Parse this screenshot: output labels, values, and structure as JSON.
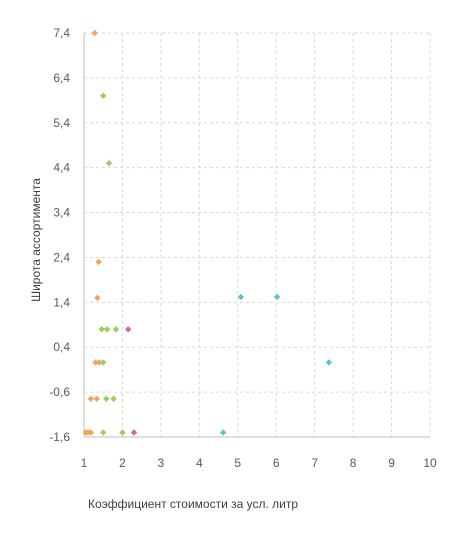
{
  "chart_data": {
    "type": "scatter",
    "title": "",
    "xlabel": "Коэффициент стоимости за усл. литр",
    "ylabel": "Широта ассортимента",
    "xlim": [
      1,
      10
    ],
    "ylim": [
      -1.6,
      7.4
    ],
    "x_ticks": [
      "1",
      "2",
      "3",
      "4",
      "5",
      "6",
      "7",
      "8",
      "9",
      "10"
    ],
    "y_ticks": [
      "7,4",
      "6,4",
      "5,4",
      "4,4",
      "3,4",
      "2,4",
      "1,4",
      "0,4",
      "-0,6",
      "-1,6"
    ],
    "x_tick_values": [
      1,
      2,
      3,
      4,
      5,
      6,
      7,
      8,
      9,
      10
    ],
    "y_tick_values": [
      7.4,
      6.4,
      5.4,
      4.4,
      3.4,
      2.4,
      1.4,
      0.4,
      -0.6,
      -1.6
    ],
    "grid": true,
    "marker": "diamond",
    "colors": {
      "orange": "#f4a259",
      "green": "#9ccf5b",
      "pink": "#d9678e",
      "teal": "#5cc4cf",
      "grid": "#d9d9d9",
      "axis": "#bfbfbf"
    },
    "series": [
      {
        "color": "#f4a259",
        "points": [
          {
            "x": 1.28,
            "y": 7.4
          },
          {
            "x": 1.38,
            "y": 2.3
          },
          {
            "x": 1.35,
            "y": 1.5
          },
          {
            "x": 1.3,
            "y": 0.06
          },
          {
            "x": 1.4,
            "y": 0.06
          },
          {
            "x": 1.18,
            "y": -0.75
          },
          {
            "x": 1.33,
            "y": -0.75
          },
          {
            "x": 1.05,
            "y": -1.5
          },
          {
            "x": 1.11,
            "y": -1.5
          },
          {
            "x": 1.18,
            "y": -1.5
          }
        ]
      },
      {
        "color": "#9ccf5b",
        "points": [
          {
            "x": 1.5,
            "y": 6.0
          },
          {
            "x": 1.65,
            "y": 4.5
          },
          {
            "x": 1.46,
            "y": 0.8
          },
          {
            "x": 1.6,
            "y": 0.8
          },
          {
            "x": 1.83,
            "y": 0.8
          },
          {
            "x": 1.5,
            "y": 0.06
          },
          {
            "x": 1.58,
            "y": -0.75
          },
          {
            "x": 1.77,
            "y": -0.75
          },
          {
            "x": 1.5,
            "y": -1.5
          },
          {
            "x": 2.0,
            "y": -1.5
          }
        ]
      },
      {
        "color": "#d9678e",
        "points": [
          {
            "x": 2.15,
            "y": 0.8
          },
          {
            "x": 2.3,
            "y": -1.5
          }
        ]
      },
      {
        "color": "#5cc4cf",
        "points": [
          {
            "x": 5.08,
            "y": 1.52
          },
          {
            "x": 6.02,
            "y": 1.52
          },
          {
            "x": 7.37,
            "y": 0.06
          },
          {
            "x": 4.62,
            "y": -1.5
          }
        ]
      }
    ]
  }
}
